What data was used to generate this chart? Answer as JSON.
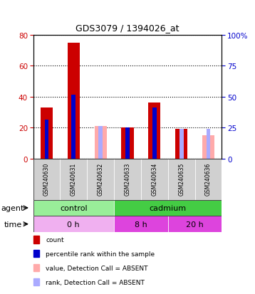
{
  "title": "GDS3079 / 1394026_at",
  "samples": [
    "GSM240630",
    "GSM240631",
    "GSM240632",
    "GSM240633",
    "GSM240634",
    "GSM240635",
    "GSM240636"
  ],
  "count_values": [
    33,
    75,
    0,
    20,
    36,
    19,
    0
  ],
  "percentile_values": [
    25,
    41,
    0,
    20,
    33,
    19,
    0
  ],
  "absent_count": [
    0,
    0,
    21,
    0,
    0,
    0,
    15
  ],
  "absent_rank": [
    0,
    0,
    21,
    0,
    0,
    19,
    19
  ],
  "count_color": "#cc0000",
  "percentile_color": "#0000cc",
  "absent_count_color": "#ffaaaa",
  "absent_rank_color": "#aaaaff",
  "ylim_left": [
    0,
    80
  ],
  "ylim_right": [
    0,
    100
  ],
  "yticks_left": [
    0,
    20,
    40,
    60,
    80
  ],
  "yticks_right": [
    0,
    25,
    50,
    75,
    100
  ],
  "agent_groups": [
    {
      "label": "control",
      "start": 0,
      "end": 3,
      "color": "#99ee99"
    },
    {
      "label": "cadmium",
      "start": 3,
      "end": 7,
      "color": "#44cc44"
    }
  ],
  "time_groups": [
    {
      "label": "0 h",
      "start": 0,
      "end": 3,
      "color": "#f0b0f0"
    },
    {
      "label": "8 h",
      "start": 3,
      "end": 5,
      "color": "#dd44dd"
    },
    {
      "label": "20 h",
      "start": 5,
      "end": 7,
      "color": "#dd44dd"
    }
  ],
  "tick_label_color_left": "#cc0000",
  "tick_label_color_right": "#0000cc"
}
